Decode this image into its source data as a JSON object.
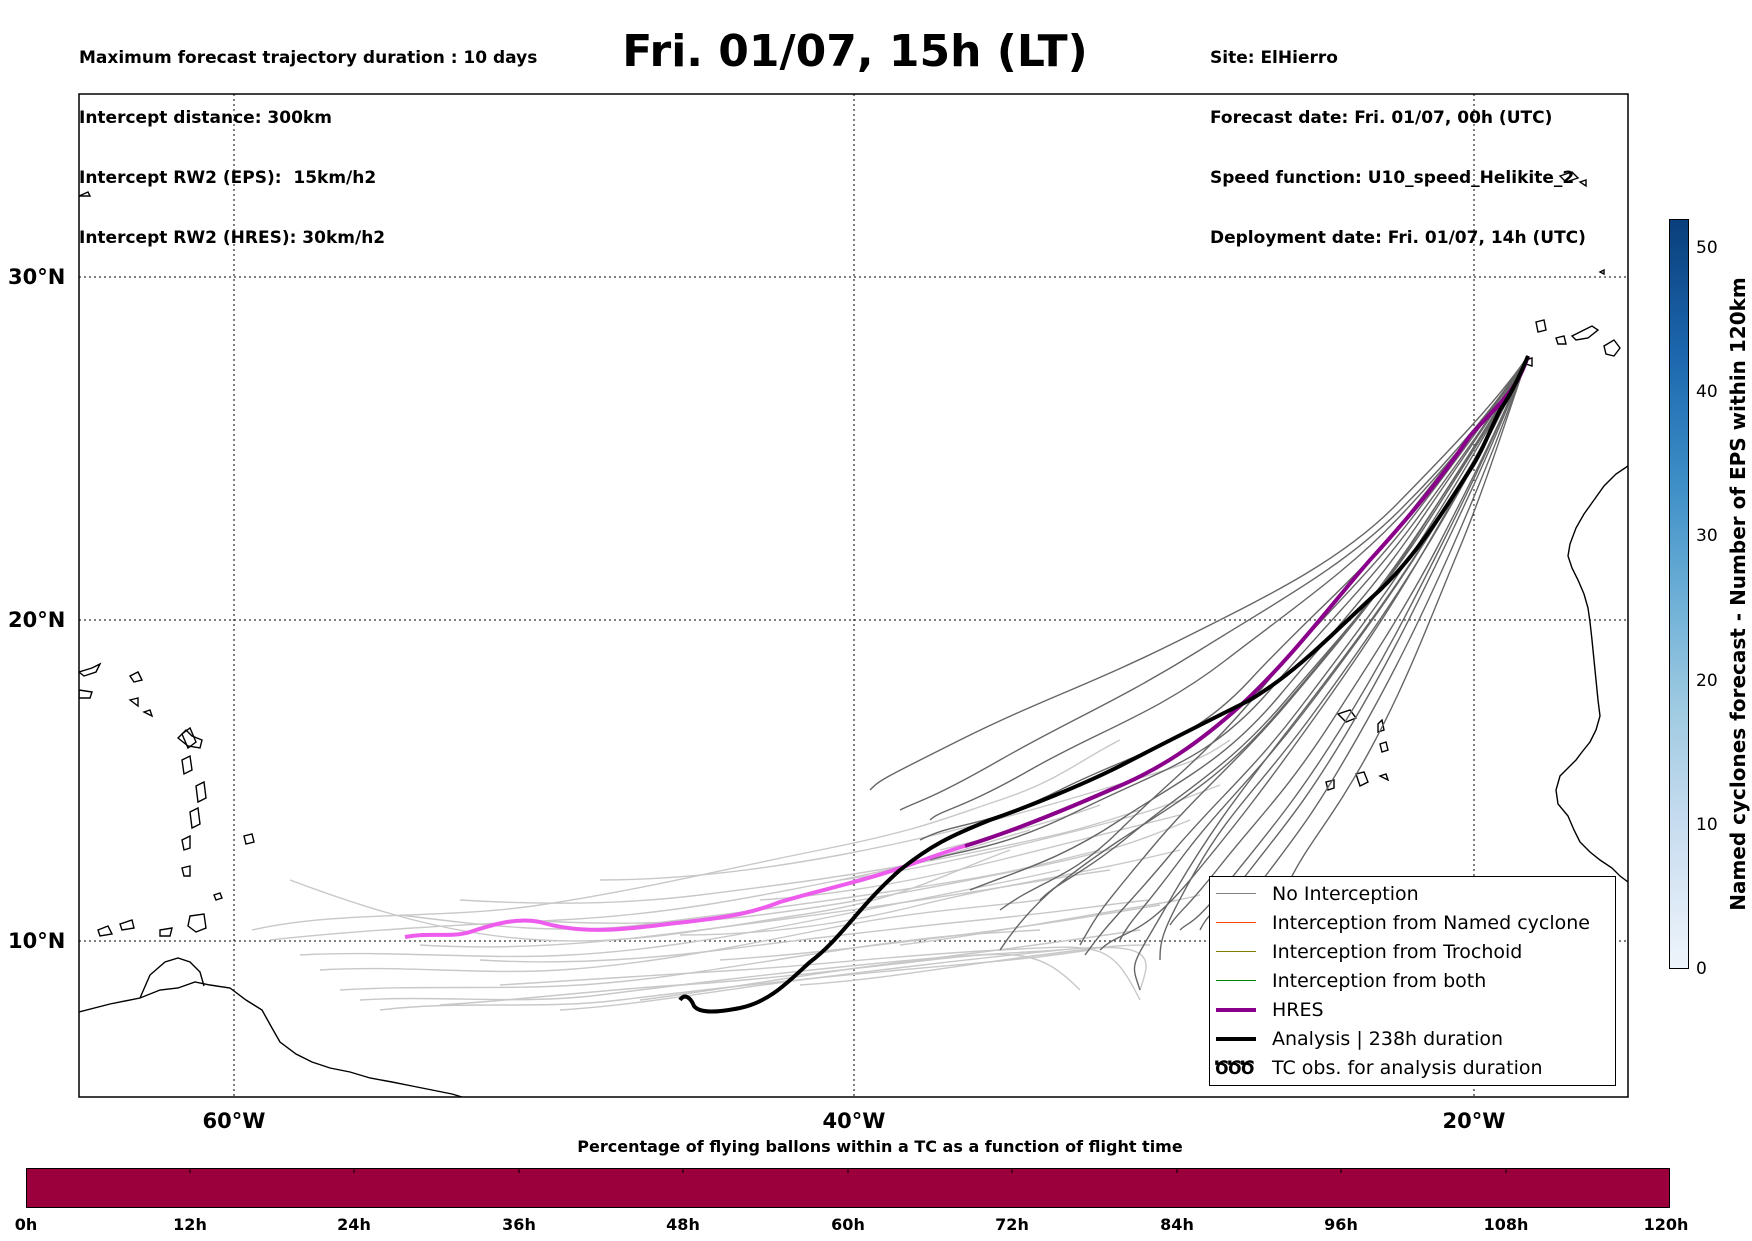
{
  "header": {
    "info_left": [
      "Maximum forecast trajectory duration : 10 days",
      "Intercept distance: 300km",
      "Intercept RW2 (EPS):  15km/h2",
      "Intercept RW2 (HRES): 30km/h2"
    ],
    "title": "Fri. 01/07, 15h (LT)",
    "info_right": [
      "Site: ElHierro",
      "Forecast date: Fri. 01/07, 00h (UTC)",
      "Speed function: U10_speed_Helikite_2",
      "Deployment date: Fri. 01/07, 14h (UTC)"
    ]
  },
  "map": {
    "lat_labels": [
      "30°N",
      "20°N",
      "10°N"
    ],
    "lon_labels": [
      "60°W",
      "40°W",
      "20°W"
    ],
    "colors": {
      "no_interception_eps": "#666666",
      "no_interception_light": "#c8c8c8",
      "hres": "#8b008b",
      "hres_early": "#ee5cee",
      "analysis": "#000000",
      "coast": "#000000"
    }
  },
  "legend": {
    "items": [
      {
        "label": "No Interception",
        "color": "#808080",
        "style": "line-thin"
      },
      {
        "label": "Interception from Named cyclone",
        "color": "#ff4500",
        "style": "line-thin"
      },
      {
        "label": "Interception from Trochoid",
        "color": "#808000",
        "style": "line-thin"
      },
      {
        "label": "Interception from both",
        "color": "#008000",
        "style": "line-thin"
      },
      {
        "label": "HRES",
        "color": "#8b008b",
        "style": "line-thick"
      },
      {
        "label": "Analysis | 238h duration",
        "color": "#000000",
        "style": "line-thick"
      },
      {
        "label": "TC obs. for analysis duration",
        "color": "#000000",
        "style": "symbol",
        "symbol": "ԾԾԾ"
      }
    ]
  },
  "bottom_colorbar": {
    "title": "Percentage of flying ballons within a TC as a function of flight time",
    "color": "#9b003c",
    "ticks": [
      "0h",
      "12h",
      "24h",
      "36h",
      "48h",
      "60h",
      "72h",
      "84h",
      "96h",
      "108h",
      "120h"
    ]
  },
  "side_colorbar": {
    "title": "Named cyclones forecast - Number of EPS within 120km",
    "ticks": [
      "0",
      "10",
      "20",
      "30",
      "40",
      "50"
    ],
    "range": [
      0,
      52
    ]
  }
}
